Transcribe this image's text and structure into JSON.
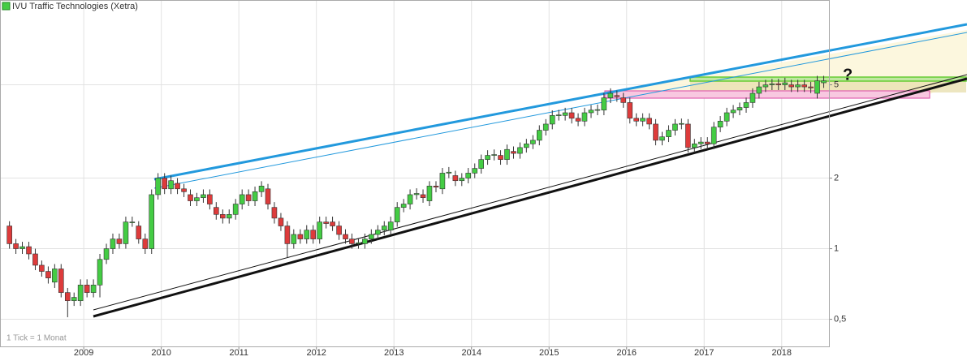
{
  "chart_data": {
    "type": "candlestick",
    "title": "IVU Traffic Technologies (Xetra)",
    "note": "1 Tick = 1 Monat",
    "annotation": "?",
    "log_scale": true,
    "grid": true,
    "up_color": "#44cc44",
    "down_color": "#dd3b3b",
    "xlim": [
      2007.92,
      2018.62
    ],
    "xticks": [
      2009,
      2010,
      2011,
      2012,
      2013,
      2014,
      2015,
      2016,
      2017,
      2018
    ],
    "ylim": [
      0.38,
      11.5
    ],
    "yticks": [
      {
        "value": 0.5,
        "label": "0,5"
      },
      1,
      2,
      5
    ],
    "x": [
      2008.042,
      2008.125,
      2008.208,
      2008.292,
      2008.375,
      2008.458,
      2008.542,
      2008.625,
      2008.708,
      2008.792,
      2008.875,
      2008.958,
      2009.042,
      2009.125,
      2009.208,
      2009.292,
      2009.375,
      2009.458,
      2009.542,
      2009.625,
      2009.708,
      2009.792,
      2009.875,
      2009.958,
      2010.042,
      2010.125,
      2010.208,
      2010.292,
      2010.375,
      2010.458,
      2010.542,
      2010.625,
      2010.708,
      2010.792,
      2010.875,
      2010.958,
      2011.042,
      2011.125,
      2011.208,
      2011.292,
      2011.375,
      2011.458,
      2011.542,
      2011.625,
      2011.708,
      2011.792,
      2011.875,
      2011.958,
      2012.042,
      2012.125,
      2012.208,
      2012.292,
      2012.375,
      2012.458,
      2012.542,
      2012.625,
      2012.708,
      2012.792,
      2012.875,
      2012.958,
      2013.042,
      2013.125,
      2013.208,
      2013.292,
      2013.375,
      2013.458,
      2013.542,
      2013.625,
      2013.708,
      2013.792,
      2013.875,
      2013.958,
      2014.042,
      2014.125,
      2014.208,
      2014.292,
      2014.375,
      2014.458,
      2014.542,
      2014.625,
      2014.708,
      2014.792,
      2014.875,
      2014.958,
      2015.042,
      2015.125,
      2015.208,
      2015.292,
      2015.375,
      2015.458,
      2015.542,
      2015.625,
      2015.708,
      2015.792,
      2015.875,
      2015.958,
      2016.042,
      2016.125,
      2016.208,
      2016.292,
      2016.375,
      2016.458,
      2016.542,
      2016.625,
      2016.708,
      2016.792,
      2016.875,
      2016.958,
      2017.042,
      2017.125,
      2017.208,
      2017.292,
      2017.375,
      2017.458,
      2017.542,
      2017.625,
      2017.708,
      2017.792,
      2017.875,
      2017.958,
      2018.042,
      2018.125,
      2018.208,
      2018.292,
      2018.375,
      2018.458,
      2018.542
    ],
    "series": [
      {
        "name": "IVU Traffic Technologies (Xetra)",
        "color": "#44cc44",
        "open": [
          1.25,
          1.05,
          1.0,
          1.02,
          0.95,
          0.85,
          0.8,
          0.72,
          0.82,
          0.65,
          0.6,
          0.6,
          0.7,
          0.65,
          0.7,
          0.9,
          1.0,
          1.1,
          1.05,
          1.3,
          1.25,
          1.1,
          1.0,
          1.7,
          2.0,
          1.8,
          1.9,
          1.8,
          1.7,
          1.6,
          1.65,
          1.7,
          1.5,
          1.4,
          1.35,
          1.4,
          1.55,
          1.7,
          1.6,
          1.75,
          1.8,
          1.5,
          1.35,
          1.25,
          1.05,
          1.15,
          1.1,
          1.2,
          1.1,
          1.3,
          1.3,
          1.25,
          1.15,
          1.1,
          1.05,
          1.05,
          1.1,
          1.15,
          1.2,
          1.2,
          1.3,
          1.5,
          1.55,
          1.7,
          1.7,
          1.6,
          1.85,
          1.8,
          2.1,
          2.05,
          1.95,
          2.0,
          2.1,
          2.2,
          2.4,
          2.5,
          2.5,
          2.4,
          2.6,
          2.55,
          2.7,
          2.8,
          2.9,
          3.2,
          3.4,
          3.7,
          3.7,
          3.8,
          3.6,
          3.5,
          3.8,
          3.9,
          3.9,
          4.4,
          4.5,
          4.4,
          4.2,
          3.6,
          3.5,
          3.6,
          3.4,
          2.9,
          3.0,
          3.2,
          3.4,
          3.4,
          2.7,
          2.8,
          2.85,
          2.8,
          3.3,
          3.5,
          3.8,
          3.9,
          4.0,
          4.2,
          4.6,
          4.9,
          5.0,
          5.05,
          5.0,
          5.0,
          4.9,
          5.0,
          4.9,
          4.6,
          5.1
        ],
        "high": [
          1.31,
          1.1,
          1.07,
          1.07,
          1.0,
          0.89,
          0.84,
          0.86,
          0.86,
          0.68,
          0.65,
          0.74,
          0.74,
          0.74,
          0.95,
          1.05,
          1.16,
          1.16,
          1.37,
          1.37,
          1.31,
          1.16,
          1.79,
          2.1,
          2.1,
          2.05,
          2.0,
          1.89,
          1.79,
          1.73,
          1.79,
          1.79,
          1.58,
          1.47,
          1.47,
          1.63,
          1.79,
          1.79,
          1.84,
          1.94,
          1.89,
          1.58,
          1.42,
          1.31,
          1.21,
          1.21,
          1.26,
          1.26,
          1.37,
          1.37,
          1.37,
          1.31,
          1.21,
          1.16,
          1.11,
          1.16,
          1.21,
          1.26,
          1.31,
          1.37,
          1.58,
          1.63,
          1.79,
          1.81,
          1.79,
          1.94,
          1.94,
          2.21,
          2.23,
          2.15,
          2.1,
          2.21,
          2.31,
          2.52,
          2.63,
          2.65,
          2.63,
          2.78,
          2.73,
          2.84,
          2.94,
          3.05,
          3.36,
          3.57,
          3.89,
          3.91,
          3.99,
          3.99,
          3.78,
          3.99,
          4.1,
          4.12,
          4.62,
          4.83,
          4.73,
          4.62,
          4.41,
          3.78,
          3.78,
          3.78,
          3.57,
          3.15,
          3.36,
          3.57,
          3.59,
          3.57,
          2.94,
          2.99,
          2.99,
          3.47,
          3.68,
          3.99,
          4.1,
          4.2,
          4.41,
          4.83,
          5.15,
          5.25,
          5.3,
          5.3,
          5.36,
          5.25,
          5.25,
          5.25,
          5.15,
          5.46,
          5.46
        ],
        "low": [
          1.0,
          0.95,
          0.95,
          0.9,
          0.81,
          0.76,
          0.71,
          0.68,
          0.62,
          0.51,
          0.57,
          0.57,
          0.62,
          0.62,
          0.62,
          0.86,
          0.95,
          1.0,
          1.0,
          1.24,
          1.05,
          0.95,
          0.95,
          1.62,
          1.71,
          1.71,
          1.71,
          1.66,
          1.52,
          1.52,
          1.57,
          1.47,
          1.33,
          1.28,
          1.28,
          1.33,
          1.47,
          1.52,
          1.52,
          1.66,
          1.47,
          1.28,
          1.19,
          0.92,
          1.0,
          1.05,
          1.05,
          1.05,
          1.05,
          1.22,
          1.19,
          1.09,
          1.05,
          1.0,
          1.0,
          1.0,
          1.05,
          1.09,
          1.14,
          1.14,
          1.24,
          1.43,
          1.47,
          1.62,
          1.57,
          1.52,
          1.74,
          1.71,
          2.0,
          1.85,
          1.85,
          1.9,
          2.0,
          2.09,
          2.28,
          2.38,
          2.28,
          2.28,
          2.42,
          2.42,
          2.57,
          2.66,
          2.76,
          3.04,
          3.23,
          3.52,
          3.52,
          3.42,
          3.33,
          3.33,
          3.61,
          3.71,
          3.71,
          4.18,
          4.23,
          3.99,
          3.42,
          3.33,
          3.33,
          3.23,
          2.76,
          2.76,
          2.85,
          3.04,
          3.23,
          2.57,
          2.57,
          2.66,
          2.66,
          2.66,
          3.14,
          3.33,
          3.61,
          3.71,
          3.8,
          3.99,
          4.37,
          4.66,
          4.75,
          4.75,
          4.75,
          4.66,
          4.66,
          4.66,
          4.61,
          4.37,
          4.85
        ],
        "close": [
          1.05,
          1.0,
          1.02,
          0.95,
          0.85,
          0.8,
          0.75,
          0.82,
          0.65,
          0.6,
          0.62,
          0.7,
          0.65,
          0.7,
          0.9,
          1.0,
          1.1,
          1.05,
          1.3,
          1.3,
          1.1,
          1.0,
          1.7,
          2.0,
          1.8,
          1.95,
          1.8,
          1.75,
          1.6,
          1.65,
          1.7,
          1.55,
          1.4,
          1.35,
          1.4,
          1.55,
          1.7,
          1.6,
          1.75,
          1.85,
          1.55,
          1.35,
          1.25,
          1.05,
          1.15,
          1.1,
          1.2,
          1.1,
          1.3,
          1.28,
          1.25,
          1.15,
          1.1,
          1.05,
          1.06,
          1.1,
          1.15,
          1.2,
          1.25,
          1.3,
          1.5,
          1.55,
          1.7,
          1.72,
          1.65,
          1.85,
          1.83,
          2.1,
          2.12,
          1.95,
          2.0,
          2.1,
          2.2,
          2.4,
          2.5,
          2.52,
          2.4,
          2.65,
          2.55,
          2.7,
          2.8,
          2.9,
          3.2,
          3.4,
          3.7,
          3.72,
          3.8,
          3.6,
          3.5,
          3.8,
          3.9,
          3.92,
          4.4,
          4.6,
          4.45,
          4.2,
          3.6,
          3.5,
          3.6,
          3.4,
          2.9,
          3.0,
          3.2,
          3.4,
          3.42,
          2.7,
          2.8,
          2.85,
          2.8,
          3.3,
          3.5,
          3.8,
          3.9,
          4.0,
          4.2,
          4.6,
          4.9,
          5.0,
          5.05,
          5.0,
          5.1,
          4.9,
          5.0,
          4.9,
          4.85,
          5.2,
          5.2
        ]
      }
    ]
  }
}
